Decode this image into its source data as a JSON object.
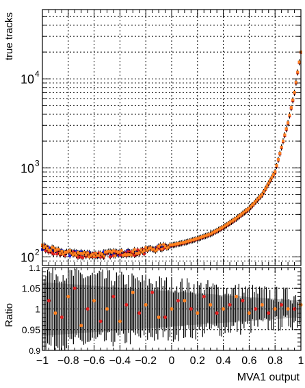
{
  "chart_data": [
    {
      "type": "scatter",
      "title": "",
      "xlabel": "",
      "ylabel": "true tracks",
      "xlim": [
        -1,
        1
      ],
      "ylim": [
        80,
        60000
      ],
      "yscale": "log",
      "grid": true,
      "legend": "none",
      "ytick_labels": [
        {
          "value": 100,
          "base": "10",
          "exp": "2"
        },
        {
          "value": 1000,
          "base": "10",
          "exp": "3"
        },
        {
          "value": 10000,
          "base": "10",
          "exp": "4"
        }
      ],
      "series": [
        {
          "color": "#2020e0",
          "x": [
            -1.0,
            -0.9,
            -0.8,
            -0.7,
            -0.6,
            -0.5,
            -0.4,
            -0.3,
            -0.2,
            -0.1,
            0.0,
            0.1,
            0.2,
            0.3,
            0.4,
            0.5,
            0.6,
            0.7,
            0.8,
            0.85,
            0.9,
            0.95,
            1.0
          ],
          "y": [
            130,
            115,
            110,
            108,
            105,
            108,
            110,
            112,
            118,
            125,
            135,
            145,
            160,
            180,
            215,
            270,
            350,
            500,
            900,
            1700,
            3200,
            7000,
            20000
          ]
        },
        {
          "color": "#e02020",
          "x": [
            -1.0,
            -0.9,
            -0.8,
            -0.7,
            -0.6,
            -0.5,
            -0.4,
            -0.3,
            -0.2,
            -0.1,
            0.0,
            0.1,
            0.2,
            0.3,
            0.4,
            0.5,
            0.6,
            0.7,
            0.8,
            0.85,
            0.9,
            0.95,
            1.0
          ],
          "y": [
            128,
            113,
            108,
            106,
            104,
            107,
            109,
            111,
            116,
            123,
            133,
            143,
            158,
            178,
            212,
            266,
            345,
            495,
            890,
            1680,
            3150,
            6900,
            19800
          ]
        },
        {
          "color": "#ff8020",
          "x": [
            -1.0,
            -0.9,
            -0.8,
            -0.7,
            -0.6,
            -0.5,
            -0.4,
            -0.3,
            -0.2,
            -0.1,
            0.0,
            0.1,
            0.2,
            0.3,
            0.4,
            0.5,
            0.6,
            0.7,
            0.8,
            0.85,
            0.9,
            0.95,
            1.0
          ],
          "y": [
            132,
            116,
            111,
            109,
            106,
            109,
            111,
            113,
            119,
            126,
            136,
            146,
            161,
            181,
            217,
            272,
            352,
            503,
            905,
            1710,
            3220,
            7050,
            20100
          ]
        }
      ]
    },
    {
      "type": "scatter",
      "title": "",
      "xlabel": "MVA1 output",
      "ylabel": "Ratio",
      "xlim": [
        -1,
        1
      ],
      "ylim": [
        0.9,
        1.1
      ],
      "grid": true,
      "legend": "none",
      "xtick_labels": [
        "−1",
        "−0.8",
        "−0.6",
        "−0.4",
        "−0.2",
        "0",
        "0.2",
        "0.4",
        "0.6",
        "0.8",
        "1"
      ],
      "ytick_labels": [
        "0.9",
        "0.95",
        "1",
        "1.05",
        "1.1"
      ],
      "series": [
        {
          "color": "#e02020",
          "x": [
            -0.95,
            -0.85,
            -0.75,
            -0.65,
            -0.55,
            -0.45,
            -0.35,
            -0.25,
            -0.15,
            -0.05,
            0.05,
            0.15,
            0.25,
            0.35,
            0.45,
            0.55,
            0.65,
            0.75,
            0.85,
            0.95
          ],
          "y": [
            1.02,
            0.98,
            1.05,
            1.0,
            0.97,
            1.03,
            1.01,
            0.99,
            1.04,
            0.98,
            1.02,
            1.0,
            1.03,
            0.99,
            1.01,
            1.02,
            1.0,
            0.99,
            1.01,
            1.0
          ]
        },
        {
          "color": "#ff8020",
          "x": [
            -0.9,
            -0.8,
            -0.7,
            -0.6,
            -0.5,
            -0.4,
            -0.3,
            -0.2,
            -0.1,
            0.0,
            0.1,
            0.2,
            0.3,
            0.4,
            0.5,
            0.6,
            0.7,
            0.8,
            0.9,
            1.0
          ],
          "y": [
            0.99,
            1.03,
            0.96,
            1.02,
            1.0,
            0.97,
            1.04,
            1.01,
            0.98,
            1.0,
            1.02,
            0.99,
            1.01,
            1.0,
            1.03,
            0.99,
            1.01,
            1.0,
            1.0,
            1.01
          ]
        }
      ]
    }
  ]
}
